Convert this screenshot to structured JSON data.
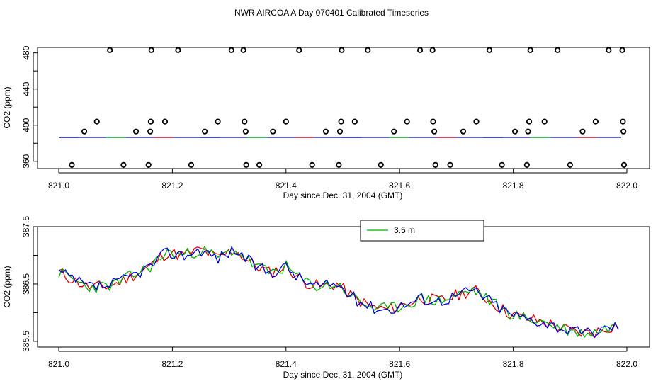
{
  "figure_title": "NWR AIRCOA A  Day 070401  Calibrated Timeseries",
  "colors": {
    "series_1": "#e00000",
    "series_2": "#00b000",
    "series_3": "#0000e0",
    "axis": "#000000"
  },
  "chart_data": [
    {
      "type": "scatter",
      "xlabel": "Day since Dec. 31, 2004 (GMT)",
      "ylabel": "CO2 (ppm)",
      "xlim": [
        821.0,
        822.0
      ],
      "ylim": [
        352,
        486
      ],
      "x_ticks": [
        "821.0",
        "821.2",
        "821.4",
        "821.6",
        "821.8",
        "822.0"
      ],
      "y_ticks": [
        "360",
        "400",
        "440",
        "480"
      ],
      "points": [
        [
          821.023,
          356
        ],
        [
          821.045,
          393
        ],
        [
          821.067,
          404
        ],
        [
          821.09,
          483
        ],
        [
          821.114,
          356
        ],
        [
          821.136,
          393
        ],
        [
          821.158,
          356
        ],
        [
          821.161,
          393
        ],
        [
          821.162,
          404
        ],
        [
          821.163,
          483
        ],
        [
          821.187,
          404
        ],
        [
          821.21,
          483
        ],
        [
          821.233,
          356
        ],
        [
          821.257,
          393
        ],
        [
          821.28,
          404
        ],
        [
          821.304,
          483
        ],
        [
          821.325,
          483
        ],
        [
          821.327,
          404
        ],
        [
          821.329,
          393
        ],
        [
          821.33,
          356
        ],
        [
          821.353,
          356
        ],
        [
          821.377,
          393
        ],
        [
          821.4,
          404
        ],
        [
          821.423,
          483
        ],
        [
          821.446,
          356
        ],
        [
          821.47,
          393
        ],
        [
          821.493,
          356
        ],
        [
          821.495,
          393
        ],
        [
          821.497,
          404
        ],
        [
          821.498,
          483
        ],
        [
          821.521,
          404
        ],
        [
          821.544,
          483
        ],
        [
          821.567,
          356
        ],
        [
          821.59,
          393
        ],
        [
          821.613,
          404
        ],
        [
          821.636,
          483
        ],
        [
          821.658,
          483
        ],
        [
          821.659,
          404
        ],
        [
          821.661,
          393
        ],
        [
          821.663,
          356
        ],
        [
          821.689,
          356
        ],
        [
          821.712,
          393
        ],
        [
          821.735,
          404
        ],
        [
          821.758,
          483
        ],
        [
          821.78,
          356
        ],
        [
          821.803,
          393
        ],
        [
          821.824,
          356
        ],
        [
          821.826,
          393
        ],
        [
          821.828,
          404
        ],
        [
          821.83,
          483
        ],
        [
          821.855,
          404
        ],
        [
          821.878,
          483
        ],
        [
          821.9,
          356
        ],
        [
          821.922,
          393
        ],
        [
          821.945,
          404
        ],
        [
          821.968,
          483
        ],
        [
          821.992,
          483
        ],
        [
          821.993,
          404
        ],
        [
          821.994,
          393
        ],
        [
          821.995,
          356
        ]
      ],
      "baseline_level": 386.5
    },
    {
      "type": "line",
      "xlabel": "Day since Dec. 31, 2004 (GMT)",
      "ylabel": "CO2 (ppm)",
      "xlim": [
        821.0,
        822.0
      ],
      "ylim": [
        385.4,
        387.5
      ],
      "x_ticks": [
        "821.0",
        "821.2",
        "821.4",
        "821.6",
        "821.8",
        "822.0"
      ],
      "y_ticks": [
        "385.5",
        "386.5",
        "387.5"
      ],
      "legend": {
        "placement": "top-center",
        "visible_entries": [
          "3.5 m"
        ]
      },
      "trend_anchors": [
        [
          821.0,
          386.7
        ],
        [
          821.03,
          386.55
        ],
        [
          821.05,
          386.45
        ],
        [
          821.08,
          386.45
        ],
        [
          821.1,
          386.5
        ],
        [
          821.13,
          386.65
        ],
        [
          821.16,
          386.8
        ],
        [
          821.19,
          387.05
        ],
        [
          821.22,
          387.0
        ],
        [
          821.25,
          387.1
        ],
        [
          821.28,
          386.95
        ],
        [
          821.31,
          387.1
        ],
        [
          821.34,
          386.85
        ],
        [
          821.37,
          386.7
        ],
        [
          821.4,
          386.8
        ],
        [
          821.43,
          386.55
        ],
        [
          821.46,
          386.45
        ],
        [
          821.49,
          386.5
        ],
        [
          821.52,
          386.25
        ],
        [
          821.55,
          386.1
        ],
        [
          821.58,
          386.05
        ],
        [
          821.61,
          386.15
        ],
        [
          821.64,
          386.25
        ],
        [
          821.67,
          386.2
        ],
        [
          821.7,
          386.3
        ],
        [
          821.73,
          386.4
        ],
        [
          821.76,
          386.2
        ],
        [
          821.79,
          386.0
        ],
        [
          821.82,
          385.9
        ],
        [
          821.85,
          385.85
        ],
        [
          821.88,
          385.75
        ],
        [
          821.91,
          385.65
        ],
        [
          821.94,
          385.65
        ],
        [
          821.97,
          385.75
        ],
        [
          822.0,
          385.8
        ]
      ],
      "series": [
        {
          "name": "series-red",
          "color": "#e00000",
          "seed": 11
        },
        {
          "name": "3.5 m",
          "color": "#00b000",
          "seed": 23
        },
        {
          "name": "series-blue",
          "color": "#0000e0",
          "seed": 37
        }
      ]
    }
  ]
}
